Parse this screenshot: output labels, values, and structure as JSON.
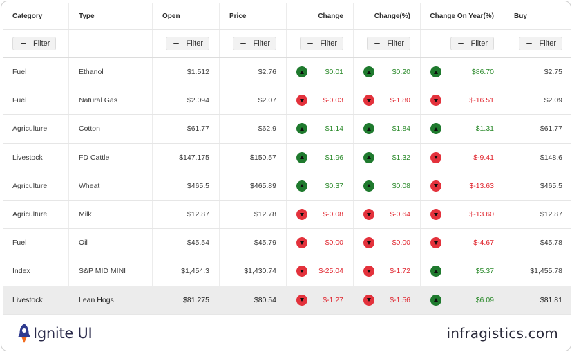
{
  "columns": [
    "Category",
    "Type",
    "Open",
    "Price",
    "Change",
    "Change(%)",
    "Change On Year(%)",
    "Buy"
  ],
  "filter_label": "Filter",
  "rows": [
    {
      "category": "Fuel",
      "type": "Ethanol",
      "open": "$1.512",
      "price": "$2.76",
      "change": {
        "dir": "up",
        "value": "$0.01"
      },
      "change_pct": {
        "dir": "up",
        "value": "$0.20"
      },
      "change_year": {
        "dir": "up",
        "value": "$86.70"
      },
      "buy": "$2.75"
    },
    {
      "category": "Fuel",
      "type": "Natural Gas",
      "open": "$2.094",
      "price": "$2.07",
      "change": {
        "dir": "down",
        "value": "$-0.03"
      },
      "change_pct": {
        "dir": "down",
        "value": "$-1.80"
      },
      "change_year": {
        "dir": "down",
        "value": "$-16.51"
      },
      "buy": "$2.09"
    },
    {
      "category": "Agriculture",
      "type": "Cotton",
      "open": "$61.77",
      "price": "$62.9",
      "change": {
        "dir": "up",
        "value": "$1.14"
      },
      "change_pct": {
        "dir": "up",
        "value": "$1.84"
      },
      "change_year": {
        "dir": "up",
        "value": "$1.31"
      },
      "buy": "$61.77"
    },
    {
      "category": "Livestock",
      "type": "FD Cattle",
      "open": "$147.175",
      "price": "$150.57",
      "change": {
        "dir": "up",
        "value": "$1.96"
      },
      "change_pct": {
        "dir": "up",
        "value": "$1.32"
      },
      "change_year": {
        "dir": "down",
        "value": "$-9.41"
      },
      "buy": "$148.6"
    },
    {
      "category": "Agriculture",
      "type": "Wheat",
      "open": "$465.5",
      "price": "$465.89",
      "change": {
        "dir": "up",
        "value": "$0.37"
      },
      "change_pct": {
        "dir": "up",
        "value": "$0.08"
      },
      "change_year": {
        "dir": "down",
        "value": "$-13.63"
      },
      "buy": "$465.5"
    },
    {
      "category": "Agriculture",
      "type": "Milk",
      "open": "$12.87",
      "price": "$12.78",
      "change": {
        "dir": "down",
        "value": "$-0.08"
      },
      "change_pct": {
        "dir": "down",
        "value": "$-0.64"
      },
      "change_year": {
        "dir": "down",
        "value": "$-13.60"
      },
      "buy": "$12.87"
    },
    {
      "category": "Fuel",
      "type": "Oil",
      "open": "$45.54",
      "price": "$45.79",
      "change": {
        "dir": "down",
        "value": "$0.00"
      },
      "change_pct": {
        "dir": "down",
        "value": "$0.00"
      },
      "change_year": {
        "dir": "down",
        "value": "$-4.67"
      },
      "buy": "$45.78"
    },
    {
      "category": "Index",
      "type": "S&P MID MINI",
      "open": "$1,454.3",
      "price": "$1,430.74",
      "change": {
        "dir": "down",
        "value": "$-25.04"
      },
      "change_pct": {
        "dir": "down",
        "value": "$-1.72"
      },
      "change_year": {
        "dir": "up",
        "value": "$5.37"
      },
      "buy": "$1,455.78"
    },
    {
      "category": "Livestock",
      "type": "Lean Hogs",
      "open": "$81.275",
      "price": "$80.54",
      "change": {
        "dir": "down",
        "value": "$-1.27"
      },
      "change_pct": {
        "dir": "down",
        "value": "$-1.56"
      },
      "change_year": {
        "dir": "up",
        "value": "$6.09"
      },
      "buy": "$81.81",
      "selected": true
    }
  ],
  "footer": {
    "brand_name": "Ignite UI",
    "site": "infragistics.com"
  },
  "colors": {
    "up_badge": "#1f7a2e",
    "down_badge": "#e3323c",
    "up_text": "#2b8a2b",
    "down_text": "#e0262f",
    "brand_blue": "#2f3b8f",
    "brand_orange": "#f26b1d"
  }
}
